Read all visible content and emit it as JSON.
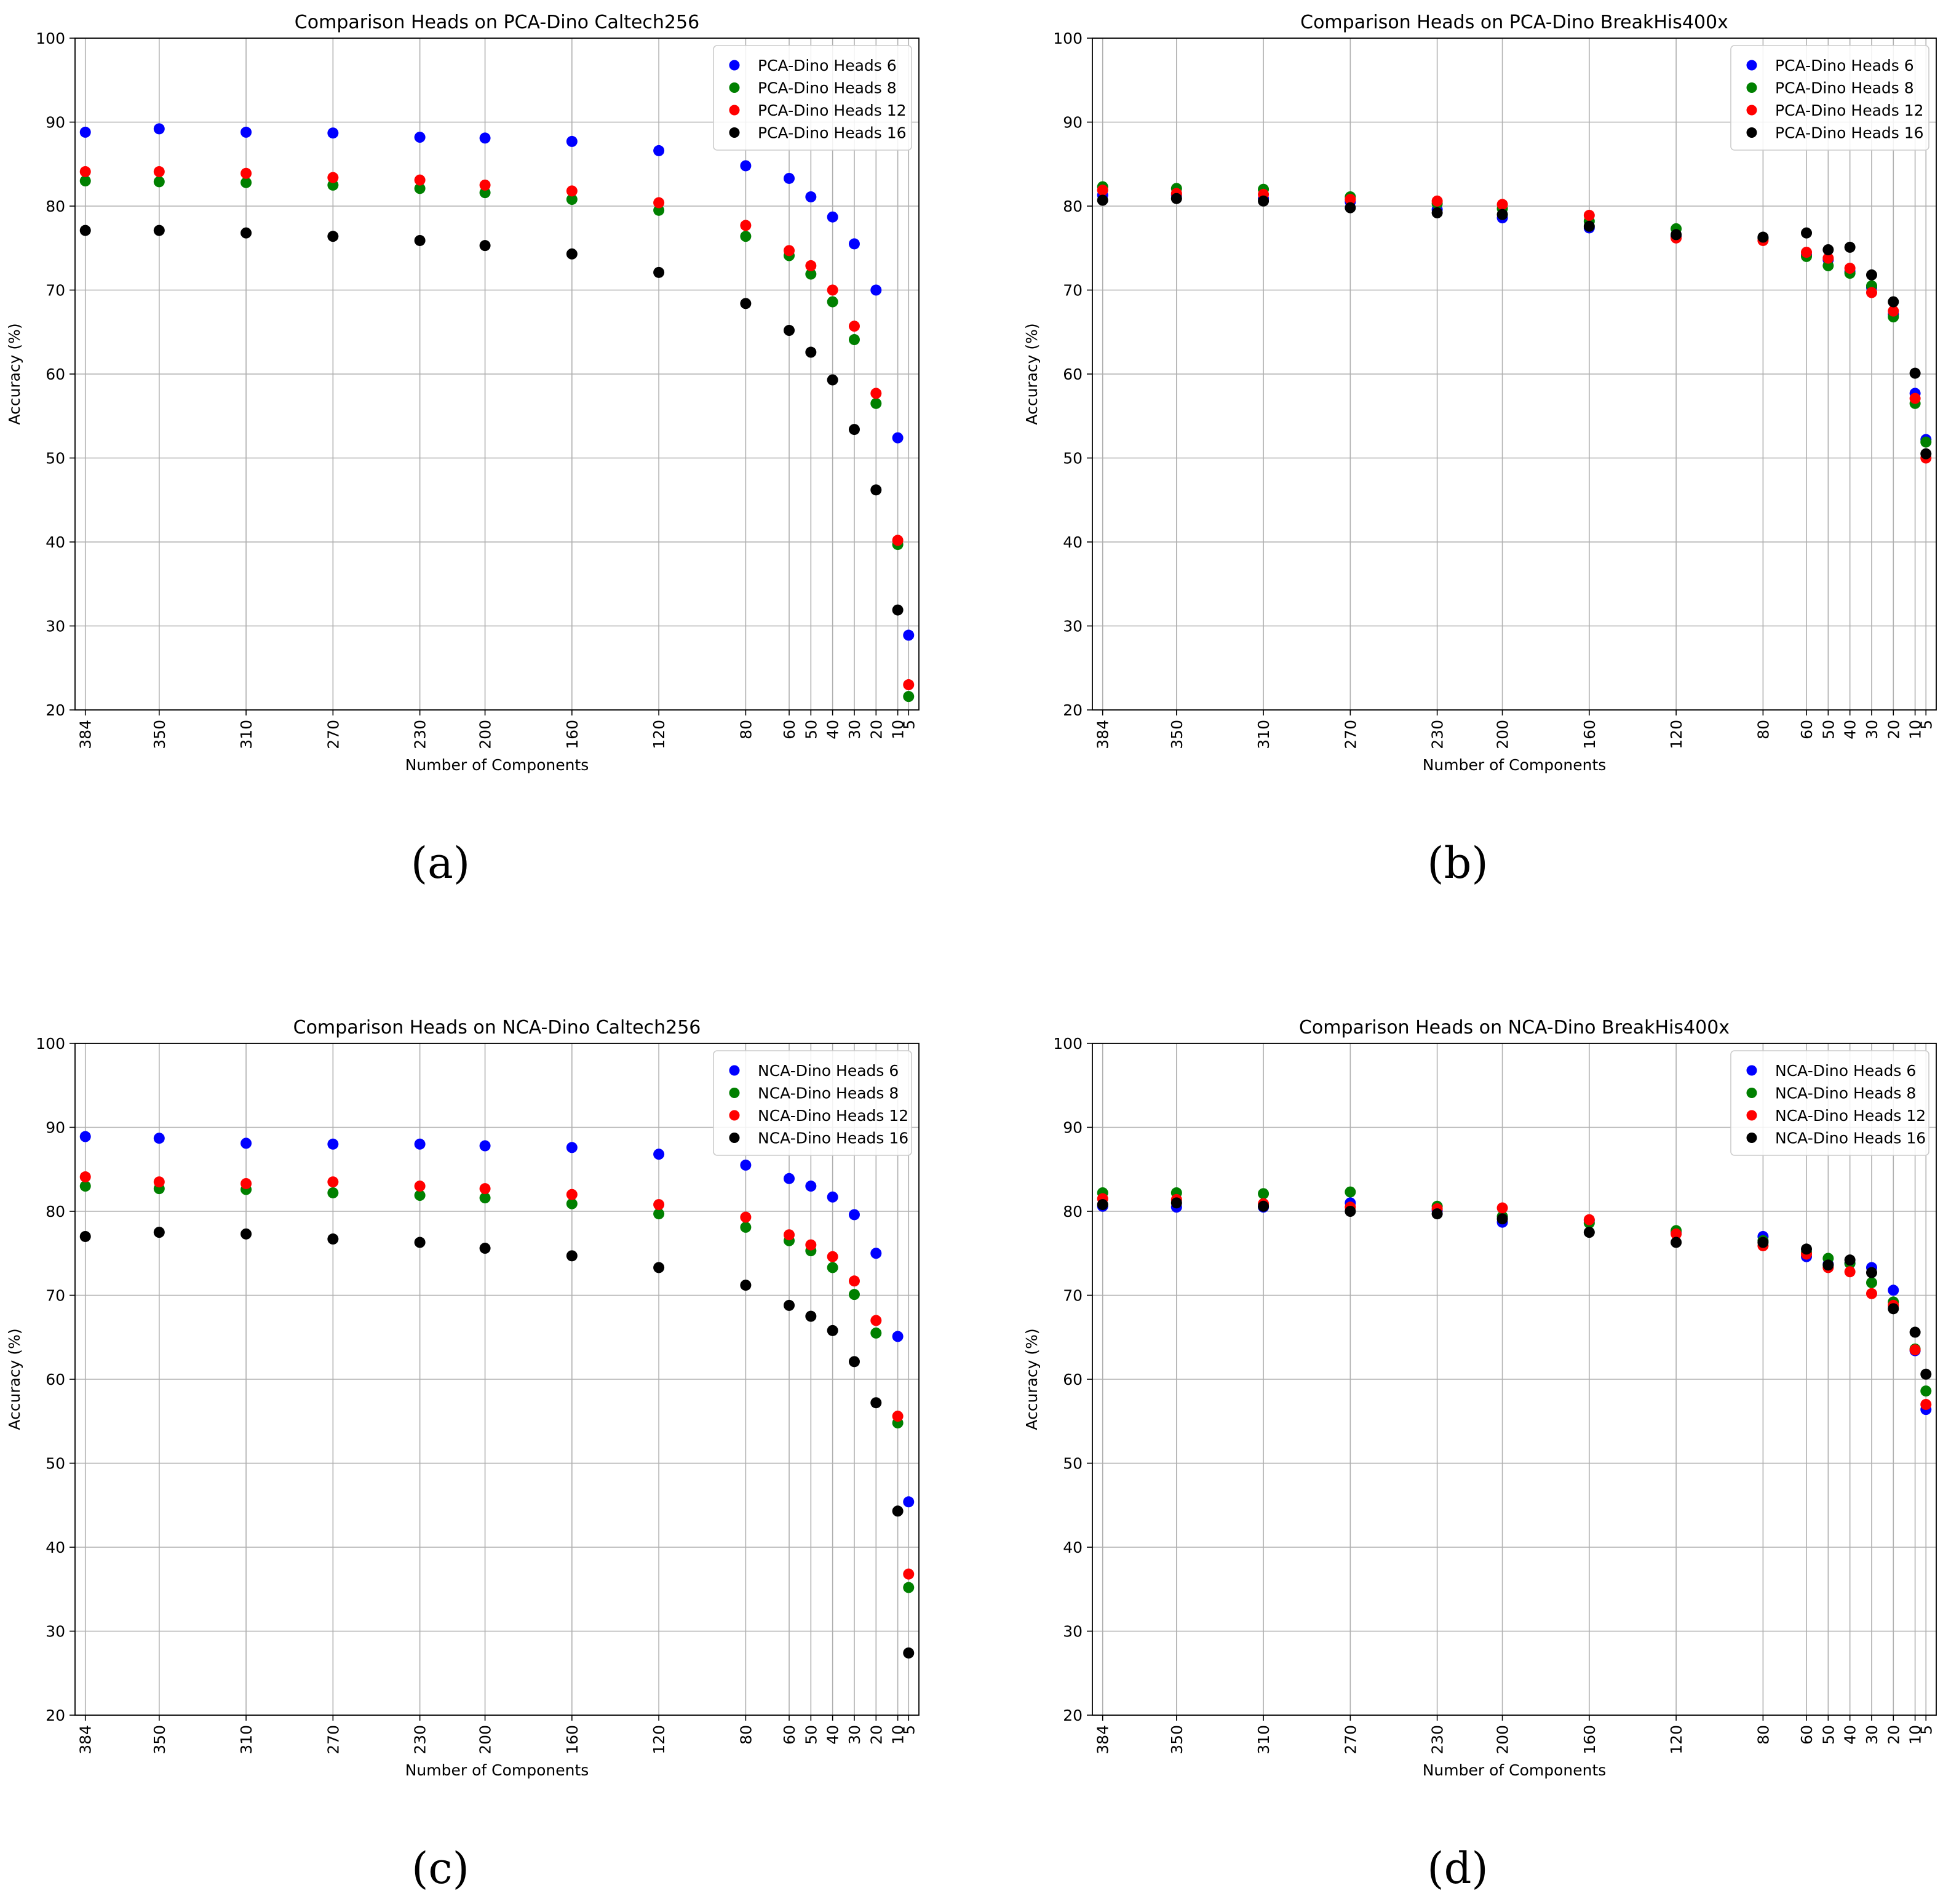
{
  "chart_data": [
    {
      "type": "scatter",
      "title": "Comparison Heads on PCA-Dino Caltech256",
      "xlabel": "Number of Components",
      "ylabel": "Accuracy (%)",
      "ylim": [
        20,
        100
      ],
      "yticks": [
        20,
        30,
        40,
        50,
        60,
        70,
        80,
        90,
        100
      ],
      "x_reversed": true,
      "grid": true,
      "legend": "top-right",
      "caption": "(a)",
      "x": [
        384,
        350,
        310,
        270,
        230,
        200,
        160,
        120,
        80,
        60,
        50,
        40,
        30,
        20,
        10,
        5
      ],
      "xtick_labels": [
        "384",
        "350",
        "310",
        "270",
        "230",
        "200",
        "160",
        "120",
        "80",
        "60",
        "50",
        "40",
        "30",
        "20",
        "10",
        "5"
      ],
      "series": [
        {
          "name": "PCA-Dino Heads 6",
          "color": "#0000ff",
          "values": [
            88.8,
            89.2,
            88.8,
            88.7,
            88.2,
            88.1,
            87.7,
            86.6,
            84.8,
            83.3,
            81.1,
            78.7,
            75.5,
            70.0,
            52.4,
            28.9
          ]
        },
        {
          "name": "PCA-Dino Heads 8",
          "color": "#008000",
          "values": [
            83.0,
            82.9,
            82.8,
            82.5,
            82.1,
            81.6,
            80.8,
            79.5,
            76.4,
            74.1,
            71.9,
            68.6,
            64.1,
            56.5,
            39.7,
            21.6
          ]
        },
        {
          "name": "PCA-Dino Heads 12",
          "color": "#ff0000",
          "values": [
            84.1,
            84.1,
            83.9,
            83.4,
            83.1,
            82.5,
            81.8,
            80.4,
            77.7,
            74.7,
            72.9,
            70.0,
            65.7,
            57.7,
            40.2,
            23.0
          ]
        },
        {
          "name": "PCA-Dino Heads 16",
          "color": "#000000",
          "values": [
            77.1,
            77.1,
            76.8,
            76.4,
            75.9,
            75.3,
            74.3,
            72.1,
            68.4,
            65.2,
            62.6,
            59.3,
            53.4,
            46.2,
            31.9,
            null
          ]
        }
      ]
    },
    {
      "type": "scatter",
      "title": "Comparison Heads on PCA-Dino BreakHis400x",
      "xlabel": "Number of Components",
      "ylabel": "Accuracy (%)",
      "ylim": [
        20,
        100
      ],
      "yticks": [
        20,
        30,
        40,
        50,
        60,
        70,
        80,
        90,
        100
      ],
      "x_reversed": true,
      "grid": true,
      "legend": "top-right",
      "caption": "(b)",
      "x": [
        384,
        350,
        310,
        270,
        230,
        200,
        160,
        120,
        80,
        60,
        50,
        40,
        30,
        20,
        10,
        5
      ],
      "xtick_labels": [
        "384",
        "350",
        "310",
        "270",
        "230",
        "200",
        "160",
        "120",
        "80",
        "60",
        "50",
        "40",
        "30",
        "20",
        "10",
        "5"
      ],
      "series": [
        {
          "name": "PCA-Dino Heads 6",
          "color": "#0000ff",
          "values": [
            81.3,
            81.3,
            80.9,
            80.5,
            79.6,
            78.6,
            77.4,
            76.4,
            76.2,
            74.2,
            73.6,
            72.2,
            70.3,
            67.1,
            57.7,
            52.2
          ]
        },
        {
          "name": "PCA-Dino Heads 8",
          "color": "#008000",
          "values": [
            82.3,
            82.1,
            82.0,
            81.1,
            80.3,
            79.7,
            78.2,
            77.3,
            76.1,
            74.0,
            72.9,
            72.0,
            70.5,
            66.8,
            56.5,
            51.9
          ]
        },
        {
          "name": "PCA-Dino Heads 12",
          "color": "#ff0000",
          "values": [
            81.9,
            81.5,
            81.4,
            80.8,
            80.6,
            80.2,
            78.9,
            76.2,
            75.9,
            74.5,
            73.8,
            72.6,
            69.7,
            67.5,
            57.1,
            50.0
          ]
        },
        {
          "name": "PCA-Dino Heads 16",
          "color": "#000000",
          "values": [
            80.7,
            80.9,
            80.6,
            79.8,
            79.2,
            79.0,
            77.6,
            76.6,
            76.3,
            76.8,
            74.8,
            75.1,
            71.8,
            68.6,
            60.1,
            50.5
          ]
        }
      ]
    },
    {
      "type": "scatter",
      "title": "Comparison Heads on NCA-Dino Caltech256",
      "xlabel": "Number of Components",
      "ylabel": "Accuracy (%)",
      "ylim": [
        20,
        100
      ],
      "yticks": [
        20,
        30,
        40,
        50,
        60,
        70,
        80,
        90,
        100
      ],
      "x_reversed": true,
      "grid": true,
      "legend": "top-right",
      "caption": "(c)",
      "x": [
        384,
        350,
        310,
        270,
        230,
        200,
        160,
        120,
        80,
        60,
        50,
        40,
        30,
        20,
        10,
        5
      ],
      "xtick_labels": [
        "384",
        "350",
        "310",
        "270",
        "230",
        "200",
        "160",
        "120",
        "80",
        "60",
        "50",
        "40",
        "30",
        "20",
        "10",
        "5"
      ],
      "series": [
        {
          "name": "NCA-Dino Heads 6",
          "color": "#0000ff",
          "values": [
            88.9,
            88.7,
            88.1,
            88.0,
            88.0,
            87.8,
            87.6,
            86.8,
            85.5,
            83.9,
            83.0,
            81.7,
            79.6,
            75.0,
            65.1,
            45.4
          ]
        },
        {
          "name": "NCA-Dino Heads 8",
          "color": "#008000",
          "values": [
            83.0,
            82.7,
            82.6,
            82.2,
            81.9,
            81.6,
            80.9,
            79.7,
            78.1,
            76.5,
            75.3,
            73.3,
            70.1,
            65.5,
            54.8,
            35.2
          ]
        },
        {
          "name": "NCA-Dino Heads 12",
          "color": "#ff0000",
          "values": [
            84.1,
            83.5,
            83.3,
            83.5,
            83.0,
            82.7,
            82.0,
            80.8,
            79.3,
            77.2,
            76.0,
            74.6,
            71.7,
            67.0,
            55.6,
            36.8
          ]
        },
        {
          "name": "NCA-Dino Heads 16",
          "color": "#000000",
          "values": [
            77.0,
            77.5,
            77.3,
            76.7,
            76.3,
            75.6,
            74.7,
            73.3,
            71.2,
            68.8,
            67.5,
            65.8,
            62.1,
            57.2,
            44.3,
            27.4
          ]
        }
      ]
    },
    {
      "type": "scatter",
      "title": "Comparison Heads on NCA-Dino BreakHis400x",
      "xlabel": "Number of Components",
      "ylabel": "Accuracy (%)",
      "ylim": [
        20,
        100
      ],
      "yticks": [
        20,
        30,
        40,
        50,
        60,
        70,
        80,
        90,
        100
      ],
      "x_reversed": true,
      "grid": true,
      "legend": "top-right",
      "caption": "(d)",
      "x": [
        384,
        350,
        310,
        270,
        230,
        200,
        160,
        120,
        80,
        60,
        50,
        40,
        30,
        20,
        10,
        5
      ],
      "xtick_labels": [
        "384",
        "350",
        "310",
        "270",
        "230",
        "200",
        "160",
        "120",
        "80",
        "60",
        "50",
        "40",
        "30",
        "20",
        "10",
        "5"
      ],
      "series": [
        {
          "name": "NCA-Dino Heads 6",
          "color": "#0000ff",
          "values": [
            80.6,
            80.5,
            80.5,
            81.0,
            80.1,
            78.7,
            78.9,
            77.5,
            77.0,
            74.6,
            73.7,
            73.8,
            73.3,
            70.6,
            63.4,
            56.4
          ]
        },
        {
          "name": "NCA-Dino Heads 8",
          "color": "#008000",
          "values": [
            82.2,
            82.2,
            82.1,
            82.3,
            80.6,
            79.4,
            78.6,
            77.7,
            76.5,
            75.1,
            74.4,
            73.8,
            71.5,
            69.2,
            63.6,
            58.6
          ]
        },
        {
          "name": "NCA-Dino Heads 12",
          "color": "#ff0000",
          "values": [
            81.5,
            81.4,
            80.9,
            80.5,
            80.3,
            80.4,
            79.0,
            77.3,
            75.9,
            74.9,
            73.3,
            72.8,
            70.2,
            68.8,
            63.5,
            57.0
          ]
        },
        {
          "name": "NCA-Dino Heads 16",
          "color": "#000000",
          "values": [
            80.8,
            81.0,
            80.6,
            80.0,
            79.7,
            79.1,
            77.5,
            76.3,
            76.3,
            75.5,
            73.6,
            74.2,
            72.7,
            68.4,
            65.6,
            60.6
          ]
        }
      ]
    }
  ]
}
